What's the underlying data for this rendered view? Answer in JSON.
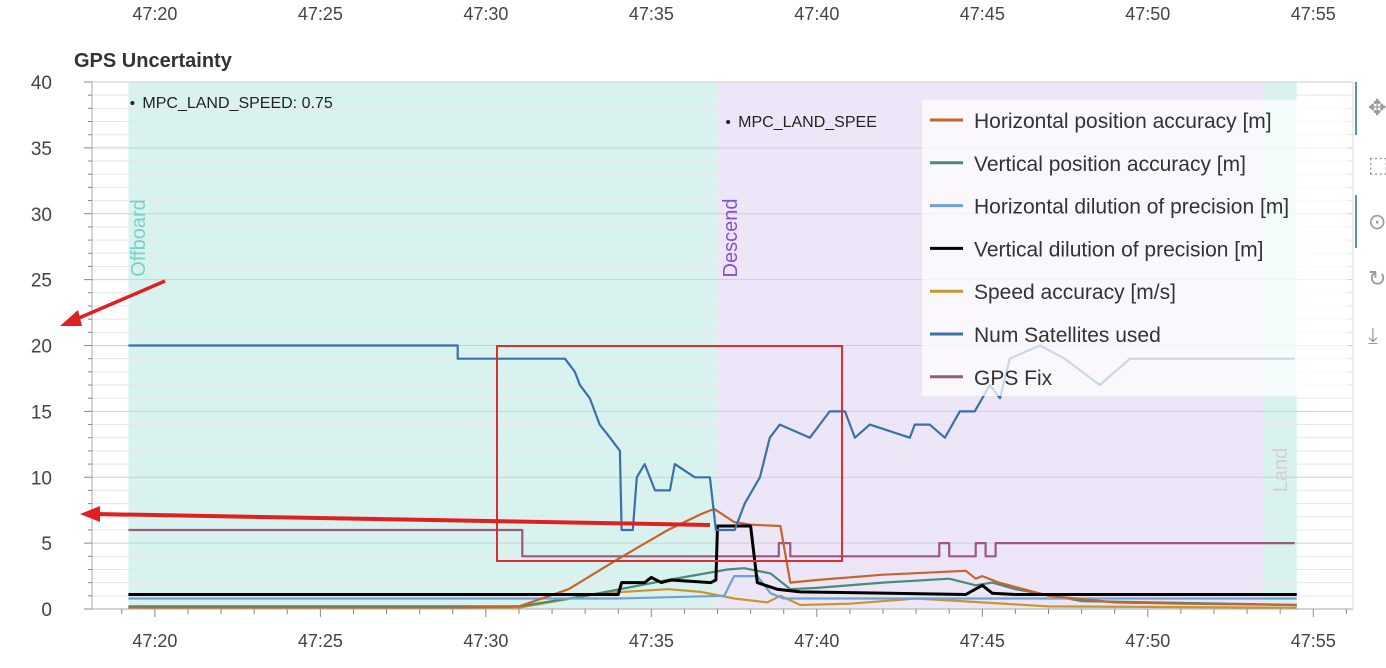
{
  "chart_data": {
    "type": "line",
    "title": "GPS Uncertainty",
    "xlabel": "",
    "ylabel": "",
    "xlim": [
      "47:18.1",
      "47:56.2"
    ],
    "ylim": [
      0,
      40
    ],
    "x_ticks": [
      "47:20",
      "47:25",
      "47:30",
      "47:35",
      "47:40",
      "47:45",
      "47:50",
      "47:55"
    ],
    "top_x_ticks": [
      "47:20",
      "47:25",
      "47:30",
      "47:35",
      "47:40",
      "47:45",
      "47:50",
      "47:55"
    ],
    "y_ticks": [
      0,
      5,
      10,
      15,
      20,
      25,
      30,
      35,
      40
    ],
    "grid": true,
    "legend_position": "top-right",
    "flight_modes": [
      {
        "label": "Offboard",
        "start": "47:19.2",
        "end": "47:37.0",
        "color": "#d8f3ef",
        "text_color": "#7ccfc6"
      },
      {
        "label": "Descend",
        "start": "47:37.0",
        "end": "47:53.5",
        "color": "#ece6f8",
        "text_color": "#8a4fd0"
      },
      {
        "label": "Land",
        "start": "47:53.5",
        "end": "47:54.5",
        "color": "#d8f3ef",
        "text_color": "#d0d0d8"
      }
    ],
    "annotations": [
      {
        "text": "MPC_LAND_SPEED: 0.75",
        "x": "47:19.2"
      },
      {
        "text": "MPC_LAND_SPEE",
        "x": "47:37.2"
      }
    ],
    "series": [
      {
        "name": "Horizontal position accuracy [m]",
        "color": "#c8642a",
        "x": [
          "47:19.2",
          "47:29.0",
          "47:31.0",
          "47:32.5",
          "47:34.0",
          "47:35.5",
          "47:36.5",
          "47:36.9",
          "47:37.5",
          "47:38.0",
          "47:38.9",
          "47:39.2",
          "47:40.0",
          "47:42.0",
          "47:44.5",
          "47:44.8",
          "47:45.0",
          "47:45.5",
          "47:47.0",
          "47:49.0",
          "47:51.0",
          "47:54.5"
        ],
        "y": [
          0.1,
          0.1,
          0.2,
          1.5,
          3.8,
          6.0,
          7.2,
          7.6,
          6.6,
          6.4,
          6.3,
          2.0,
          2.2,
          2.6,
          2.9,
          2.3,
          2.5,
          2.0,
          1.0,
          0.5,
          0.4,
          0.3
        ]
      },
      {
        "name": "Vertical position accuracy [m]",
        "color": "#4a8a7a",
        "x": [
          "47:19.2",
          "47:31.0",
          "47:33.0",
          "47:35.5",
          "47:37.3",
          "47:37.8",
          "47:38.6",
          "47:39.2",
          "47:40.0",
          "47:42.0",
          "47:44.0",
          "47:44.8",
          "47:45.3",
          "47:46.0",
          "47:48.0",
          "47:54.5"
        ],
        "y": [
          0.2,
          0.2,
          1.0,
          2.2,
          3.0,
          3.1,
          2.7,
          1.5,
          1.6,
          2.0,
          2.3,
          1.8,
          2.0,
          1.5,
          0.6,
          0.3
        ]
      },
      {
        "name": "Horizontal dilution of precision [m]",
        "color": "#6fa0d8",
        "x": [
          "47:19.2",
          "47:34.0",
          "47:37.2",
          "47:37.5",
          "47:38.2",
          "47:38.6",
          "47:39.0",
          "47:54.5"
        ],
        "y": [
          0.8,
          0.8,
          1.0,
          2.5,
          2.5,
          1.2,
          0.8,
          0.8
        ]
      },
      {
        "name": "Vertical dilution of precision [m]",
        "color": "#000000",
        "x": [
          "47:19.2",
          "47:34.0",
          "47:34.1",
          "47:34.8",
          "47:35.0",
          "47:35.3",
          "47:35.6",
          "47:36.8",
          "47:36.95",
          "47:37.0",
          "47:38.0",
          "47:38.2",
          "47:38.8",
          "47:39.5",
          "47:44.5",
          "47:45.0",
          "47:45.3",
          "47:46.0",
          "47:54.5"
        ],
        "y": [
          1.1,
          1.1,
          2.0,
          2.0,
          2.4,
          2.0,
          2.2,
          2.0,
          2.2,
          6.3,
          6.3,
          2.0,
          1.5,
          1.3,
          1.1,
          1.8,
          1.2,
          1.1,
          1.1
        ]
      },
      {
        "name": "Speed accuracy [m/s]",
        "color": "#c9962e",
        "x": [
          "47:19.2",
          "47:31.0",
          "47:33.5",
          "47:35.5",
          "47:36.5",
          "47:37.5",
          "47:38.5",
          "47:38.9",
          "47:39.5",
          "47:41.0",
          "47:43.0",
          "47:45.0",
          "47:47.0",
          "47:54.5"
        ],
        "y": [
          0.1,
          0.1,
          1.2,
          1.5,
          1.3,
          0.8,
          0.5,
          1.0,
          0.3,
          0.4,
          0.8,
          0.5,
          0.2,
          0.1
        ]
      },
      {
        "name": "Num Satellites used",
        "color": "#3d6fa8",
        "x": [
          "47:19.2",
          "47:29.15",
          "47:29.15",
          "47:32.39",
          "47:32.69",
          "47:32.84",
          "47:33.14",
          "47:33.44",
          "47:33.75",
          "47:34.05",
          "47:34.1",
          "47:34.44",
          "47:34.56",
          "47:34.8",
          "47:35.11",
          "47:35.56",
          "47:35.71",
          "47:36.31",
          "47:36.77",
          "47:36.95",
          "47:37.52",
          "47:37.82",
          "47:38.28",
          "47:38.58",
          "47:38.88",
          "47:39.79",
          "47:40.39",
          "47:40.85",
          "47:41.15",
          "47:41.6",
          "47:42.81",
          "47:42.96",
          "47:43.41",
          "47:43.87",
          "47:44.32",
          "47:44.77",
          "47:45.23",
          "47:45.53",
          "47:45.83",
          "47:46.74",
          "47:47.49",
          "47:48.55",
          "47:49.46",
          "47:54.44"
        ],
        "y": [
          20,
          20,
          19,
          19,
          18,
          17,
          16,
          14,
          13,
          12,
          6,
          6,
          10,
          11,
          9,
          9,
          11,
          10,
          10,
          6,
          6,
          8,
          10,
          13,
          14,
          13,
          15,
          15,
          13,
          14,
          13,
          14,
          14,
          13,
          15,
          15,
          17,
          16,
          19,
          20,
          19,
          17,
          19,
          19
        ]
      },
      {
        "name": "GPS Fix",
        "color": "#9a5a7e",
        "x": [
          "47:19.2",
          "47:31.1",
          "47:31.1",
          "47:38.85",
          "47:38.85",
          "47:39.2",
          "47:39.2",
          "47:43.7",
          "47:43.7",
          "47:44.0",
          "47:44.0",
          "47:44.8",
          "47:44.8",
          "47:45.1",
          "47:45.1",
          "47:45.4",
          "47:45.4",
          "47:54.44"
        ],
        "y": [
          6,
          6,
          4,
          4,
          5,
          5,
          4,
          4,
          5,
          5,
          4,
          4,
          5,
          5,
          4,
          4,
          5,
          5
        ]
      }
    ]
  },
  "toolbar": {
    "icons": [
      "pan-icon",
      "box-zoom-icon",
      "wheel-zoom-icon",
      "reset-icon",
      "save-icon"
    ]
  }
}
